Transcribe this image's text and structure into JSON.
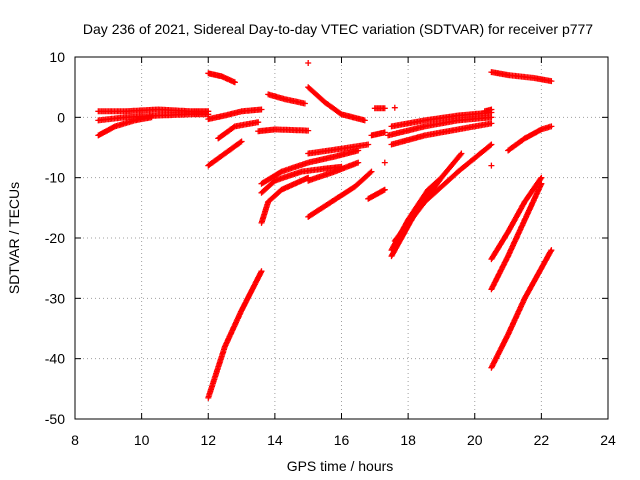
{
  "chart_data": {
    "type": "scatter",
    "title": "Day 236 of 2021, Sidereal Day-to-day VTEC variation (SDTVAR) for receiver p777",
    "xlabel": "GPS time / hours",
    "ylabel": "SDTVAR / TECUs",
    "xlim": [
      8,
      24
    ],
    "ylim": [
      -50,
      10
    ],
    "xticks": [
      "8",
      "10",
      "12",
      "14",
      "16",
      "18",
      "20",
      "22",
      "24"
    ],
    "yticks": [
      "10",
      "0",
      "-10",
      "-20",
      "-30",
      "-40",
      "-50"
    ],
    "grid": true,
    "marker": "+",
    "color": "#ff0000",
    "tracks": [
      {
        "x": [
          8.7,
          9.5,
          10.5,
          11.5,
          12.0
        ],
        "y": [
          1.0,
          1.0,
          1.3,
          1.0,
          1.0
        ]
      },
      {
        "x": [
          8.7,
          9.5,
          10.5,
          11.5,
          12.0
        ],
        "y": [
          -0.5,
          0.0,
          0.3,
          0.5,
          0.5
        ]
      },
      {
        "x": [
          8.7,
          9.2,
          9.8,
          10.3
        ],
        "y": [
          -3.0,
          -1.5,
          -0.5,
          0.0
        ]
      },
      {
        "x": [
          12.0,
          12.4,
          12.8
        ],
        "y": [
          7.3,
          6.8,
          5.8
        ]
      },
      {
        "x": [
          12.0,
          12.5,
          13.0,
          13.6
        ],
        "y": [
          -0.3,
          0.3,
          1.0,
          1.3
        ]
      },
      {
        "x": [
          12.3,
          12.8,
          13.5
        ],
        "y": [
          -3.5,
          -1.5,
          -0.8
        ]
      },
      {
        "x": [
          12.0,
          12.5,
          13.0
        ],
        "y": [
          -8.0,
          -6.0,
          -4.0
        ]
      },
      {
        "x": [
          12.0,
          12.5,
          13.0,
          13.6
        ],
        "y": [
          -46.5,
          -38.0,
          -32.0,
          -25.5
        ]
      },
      {
        "x": [
          13.8,
          14.3,
          14.9
        ],
        "y": [
          3.8,
          3.0,
          2.3
        ]
      },
      {
        "x": [
          13.5,
          14.0,
          15.0
        ],
        "y": [
          -2.3,
          -2.0,
          -2.2
        ]
      },
      {
        "x": [
          13.6,
          14.2,
          15.0,
          15.8,
          16.5
        ],
        "y": [
          -11.0,
          -9.0,
          -7.5,
          -6.5,
          -5.5
        ]
      },
      {
        "x": [
          13.6,
          14.0,
          14.8,
          15.5,
          16.0
        ],
        "y": [
          -12.5,
          -10.5,
          -9.0,
          -8.5,
          -8.2
        ]
      },
      {
        "x": [
          13.6,
          13.8,
          14.2,
          15.0
        ],
        "y": [
          -17.5,
          -14.0,
          -12.0,
          -10.0
        ]
      },
      {
        "x": [
          15.0,
          15.5,
          16.0,
          16.7
        ],
        "y": [
          5.0,
          2.5,
          0.5,
          -0.5
        ]
      },
      {
        "x": [
          15.0
        ],
        "y": [
          9.0
        ]
      },
      {
        "x": [
          15.0,
          16.0,
          16.8
        ],
        "y": [
          -6.0,
          -5.2,
          -4.5
        ]
      },
      {
        "x": [
          15.0,
          15.8,
          16.5
        ],
        "y": [
          -10.5,
          -9.0,
          -7.5
        ]
      },
      {
        "x": [
          15.0,
          15.7,
          16.4,
          16.9
        ],
        "y": [
          -16.5,
          -14.0,
          -11.5,
          -9.0
        ]
      },
      {
        "x": [
          17.0,
          17.3
        ],
        "y": [
          1.5,
          1.5
        ]
      },
      {
        "x": [
          17.6
        ],
        "y": [
          1.6
        ]
      },
      {
        "x": [
          16.8,
          17.3
        ],
        "y": [
          -13.5,
          -12.0
        ]
      },
      {
        "x": [
          17.3
        ],
        "y": [
          -7.5
        ]
      },
      {
        "x": [
          16.9,
          17.3
        ],
        "y": [
          -3.0,
          -2.5
        ]
      },
      {
        "x": [
          17.5,
          18.5,
          19.5,
          20.5
        ],
        "y": [
          -1.5,
          -0.5,
          0.3,
          0.8
        ]
      },
      {
        "x": [
          17.4,
          18.5,
          19.5,
          20.5
        ],
        "y": [
          -3.0,
          -1.5,
          -0.5,
          0.0
        ]
      },
      {
        "x": [
          17.5,
          18.5,
          19.5,
          20.5
        ],
        "y": [
          -4.5,
          -3.0,
          -2.0,
          -1.0
        ]
      },
      {
        "x": [
          17.5,
          18.2,
          19.0,
          19.6
        ],
        "y": [
          -23.0,
          -16.0,
          -10.0,
          -6.0
        ]
      },
      {
        "x": [
          17.6,
          18.5,
          19.5,
          20.5
        ],
        "y": [
          -20.5,
          -14.0,
          -9.0,
          -4.5
        ]
      },
      {
        "x": [
          17.5,
          18.0,
          18.6,
          19.0
        ],
        "y": [
          -22.0,
          -17.0,
          -12.0,
          -10.0
        ]
      },
      {
        "x": [
          20.5
        ],
        "y": [
          -8.0
        ]
      },
      {
        "x": [
          20.3,
          20.5
        ],
        "y": [
          1.0,
          1.3
        ]
      },
      {
        "x": [
          20.5,
          21.0,
          21.8,
          22.3
        ],
        "y": [
          7.5,
          7.0,
          6.5,
          6.0
        ]
      },
      {
        "x": [
          21.0,
          21.5,
          22.0,
          22.3
        ],
        "y": [
          -5.5,
          -3.5,
          -2.0,
          -1.5
        ]
      },
      {
        "x": [
          20.5,
          21.0,
          21.5,
          22.0
        ],
        "y": [
          -23.5,
          -19.0,
          -14.0,
          -10.0
        ]
      },
      {
        "x": [
          20.5,
          21.0,
          21.5,
          22.0
        ],
        "y": [
          -28.5,
          -23.0,
          -17.0,
          -11.0
        ]
      },
      {
        "x": [
          20.5,
          21.0,
          21.5,
          22.0,
          22.3
        ],
        "y": [
          -41.5,
          -36.0,
          -30.0,
          -25.0,
          -22.0
        ]
      }
    ]
  }
}
